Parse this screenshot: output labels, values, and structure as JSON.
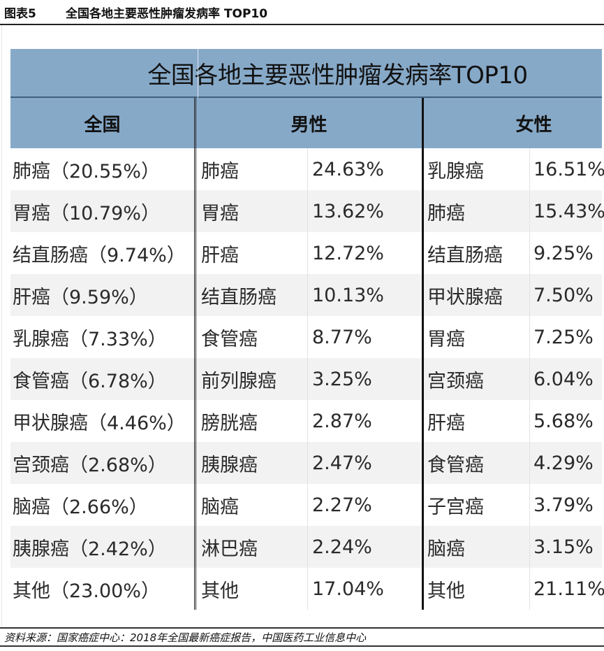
{
  "figure": {
    "label": "图表5",
    "title": "全国各地主要恶性肿瘤发病率 TOP10"
  },
  "table": {
    "banner_title": "全国各地主要恶性肿瘤发病率TOP10",
    "headers": {
      "all": "全国",
      "male": "男性",
      "female": "女性"
    },
    "rows": [
      {
        "all": "肺癌（20.55%）",
        "male_name": "肺癌",
        "male_value": "24.63%",
        "female_name": "乳腺癌",
        "female_value": "16.51%"
      },
      {
        "all": "胃癌（10.79%）",
        "male_name": "胃癌",
        "male_value": "13.62%",
        "female_name": "肺癌",
        "female_value": "15.43%"
      },
      {
        "all": "结直肠癌（9.74%）",
        "male_name": "肝癌",
        "male_value": "12.72%",
        "female_name": "结直肠癌",
        "female_value": "9.25%"
      },
      {
        "all": "肝癌（9.59%）",
        "male_name": "结直肠癌",
        "male_value": "10.13%",
        "female_name": "甲状腺癌",
        "female_value": "7.50%"
      },
      {
        "all": "乳腺癌（7.33%）",
        "male_name": "食管癌",
        "male_value": "8.77%",
        "female_name": "胃癌",
        "female_value": "7.25%"
      },
      {
        "all": "食管癌（6.78%）",
        "male_name": "前列腺癌",
        "male_value": "3.25%",
        "female_name": "宫颈癌",
        "female_value": "6.04%"
      },
      {
        "all": "甲状腺癌（4.46%）",
        "male_name": "膀胱癌",
        "male_value": "2.87%",
        "female_name": "肝癌",
        "female_value": "5.68%"
      },
      {
        "all": "宫颈癌（2.68%）",
        "male_name": "胰腺癌",
        "male_value": "2.47%",
        "female_name": "食管癌",
        "female_value": "4.29%"
      },
      {
        "all": "脑癌（2.66%）",
        "male_name": "脑癌",
        "male_value": "2.27%",
        "female_name": "子宫癌",
        "female_value": "3.79%"
      },
      {
        "all": "胰腺癌（2.42%）",
        "male_name": "淋巴癌",
        "male_value": "2.24%",
        "female_name": "脑癌",
        "female_value": "3.15%"
      },
      {
        "all": "其他（23.00%）",
        "male_name": "其他",
        "male_value": "17.04%",
        "female_name": "其他",
        "female_value": "21.11%"
      }
    ]
  },
  "source": "资料来源：国家癌症中心：2018年全国最新癌症报告，中国医药工业信息中心",
  "colors": {
    "header_bg": "#87a9c8",
    "alt_row_bg": "#f2f2f2",
    "text": "#2a2a2a"
  }
}
